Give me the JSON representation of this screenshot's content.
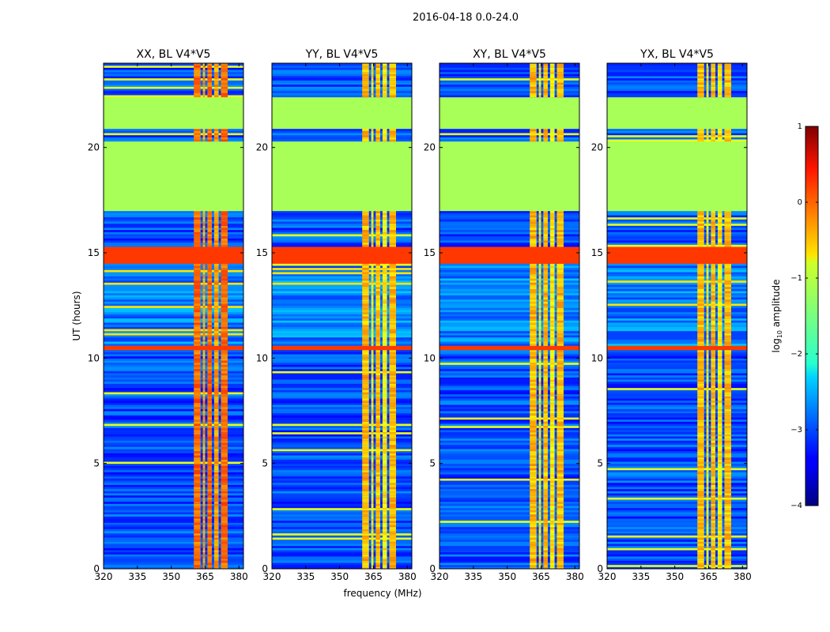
{
  "figure": {
    "suptitle": "2016-04-18 0.0-24.0"
  },
  "chart_data": {
    "type": "heatmap",
    "panels": [
      {
        "title": "XX, BL V4*V5",
        "polarization": "XX"
      },
      {
        "title": "YY, BL V4*V5",
        "polarization": "YY"
      },
      {
        "title": "XY, BL V4*V5",
        "polarization": "XY"
      },
      {
        "title": "YX, BL V4*V5",
        "polarization": "YX"
      }
    ],
    "xlabel": "frequency (MHz)",
    "ylabel": "UT (hours)",
    "xlim": [
      320,
      382
    ],
    "ylim": [
      0,
      24
    ],
    "xticks": [
      320,
      335,
      350,
      365,
      380
    ],
    "xtick_labels": [
      "320",
      "335",
      "350",
      "365",
      "380"
    ],
    "yticks": [
      0,
      5,
      10,
      15,
      20
    ],
    "ytick_labels": [
      "0",
      "5",
      "10",
      "15",
      "20"
    ],
    "colorbar": {
      "label_prefix": "log",
      "label_sub": "10",
      "label_suffix": " amplitude",
      "range": [
        -4,
        1
      ],
      "ticks": [
        1,
        0,
        -1,
        -2,
        -3,
        -4
      ],
      "tick_labels": [
        "1",
        "0",
        "−1",
        "−2",
        "−3",
        "−4"
      ],
      "colormap": "jet"
    },
    "features": {
      "flagged_blocks_hours": [
        [
          16.9,
          20.3
        ],
        [
          20.9,
          22.4
        ]
      ],
      "flagged_value_log10": -1.3,
      "strong_rfi_bands_hours": [
        [
          14.4,
          15.2
        ],
        [
          10.3,
          10.5
        ]
      ],
      "strong_rfi_log10": 0.1,
      "rfi_freq_columns_mhz": [
        [
          360,
          363
        ],
        [
          364,
          365
        ],
        [
          366,
          368
        ],
        [
          369,
          371
        ],
        [
          372,
          375
        ]
      ],
      "background_log10": -3.0
    }
  }
}
